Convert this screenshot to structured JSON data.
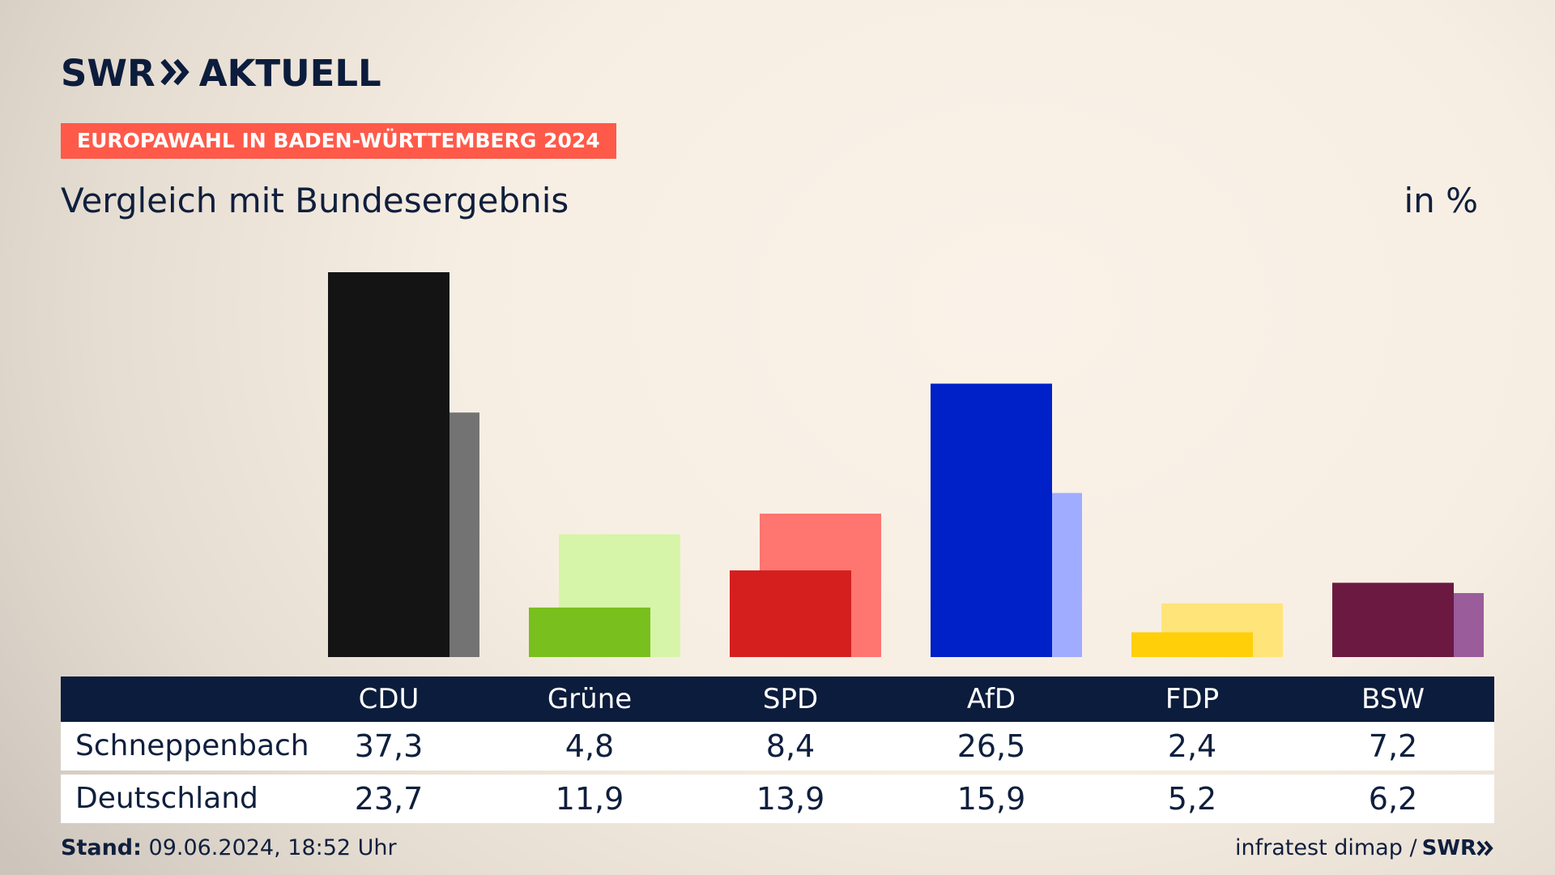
{
  "brand": {
    "logo_left": "SWR",
    "logo_right": "AKTUELL",
    "footer_logo": "SWR"
  },
  "header": {
    "badge": "EUROPAWAHL IN BADEN-WÜRTTEMBERG 2024",
    "subtitle": "Vergleich mit Bundesergebnis",
    "unit": "in %"
  },
  "footer": {
    "stand_label": "Stand:",
    "stand_value": "09.06.2024, 18:52 Uhr",
    "source": "infratest dimap /"
  },
  "colors": {
    "navy": "#0c1c3c",
    "badge": "#ff5a49",
    "parties": [
      {
        "local": "#141414",
        "national": "#737373"
      },
      {
        "local": "#79bf1e",
        "national": "#d6f5a8"
      },
      {
        "local": "#d51f1f",
        "national": "#ff7570"
      },
      {
        "local": "#0020c8",
        "national": "#a0acff"
      },
      {
        "local": "#ffcf0a",
        "national": "#ffe47a"
      },
      {
        "local": "#6b1940",
        "national": "#9a5c9a"
      }
    ]
  },
  "chart_data": {
    "type": "bar",
    "categories": [
      "CDU",
      "Grüne",
      "SPD",
      "AfD",
      "FDP",
      "BSW"
    ],
    "series": [
      {
        "name": "Schneppenbach",
        "values": [
          37.3,
          4.8,
          8.4,
          26.5,
          2.4,
          7.2
        ]
      },
      {
        "name": "Deutschland",
        "values": [
          23.7,
          11.9,
          13.9,
          15.9,
          5.2,
          6.2
        ]
      }
    ],
    "ylim": [
      0,
      37.3
    ]
  }
}
